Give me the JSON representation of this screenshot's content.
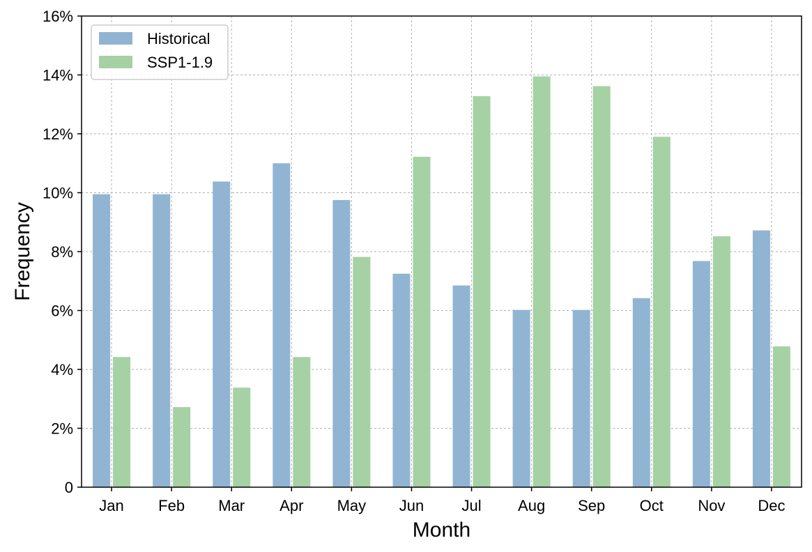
{
  "chart_data": {
    "type": "bar",
    "categories": [
      "Jan",
      "Feb",
      "Mar",
      "Apr",
      "May",
      "Jun",
      "Jul",
      "Aug",
      "Sep",
      "Oct",
      "Nov",
      "Dec"
    ],
    "series": [
      {
        "name": "Historical",
        "color": "#92b4d3",
        "values": [
          9.95,
          9.95,
          10.38,
          11.0,
          9.75,
          7.25,
          6.85,
          6.02,
          6.02,
          6.42,
          7.68,
          8.72
        ]
      },
      {
        "name": "SSP1-1.9",
        "color": "#a6d1a4",
        "values": [
          4.42,
          2.72,
          3.38,
          4.42,
          7.82,
          11.22,
          13.28,
          13.95,
          13.62,
          11.9,
          8.52,
          4.78
        ]
      }
    ],
    "xlabel": "Month",
    "ylabel": "Frequency",
    "ylim": [
      0,
      16
    ],
    "yticks": [
      0,
      2,
      4,
      6,
      8,
      10,
      12,
      14,
      16
    ],
    "ytick_labels": [
      "0",
      "2%",
      "4%",
      "6%",
      "8%",
      "10%",
      "12%",
      "14%",
      "16%"
    ],
    "grid": true,
    "legend_position": "top-left"
  }
}
